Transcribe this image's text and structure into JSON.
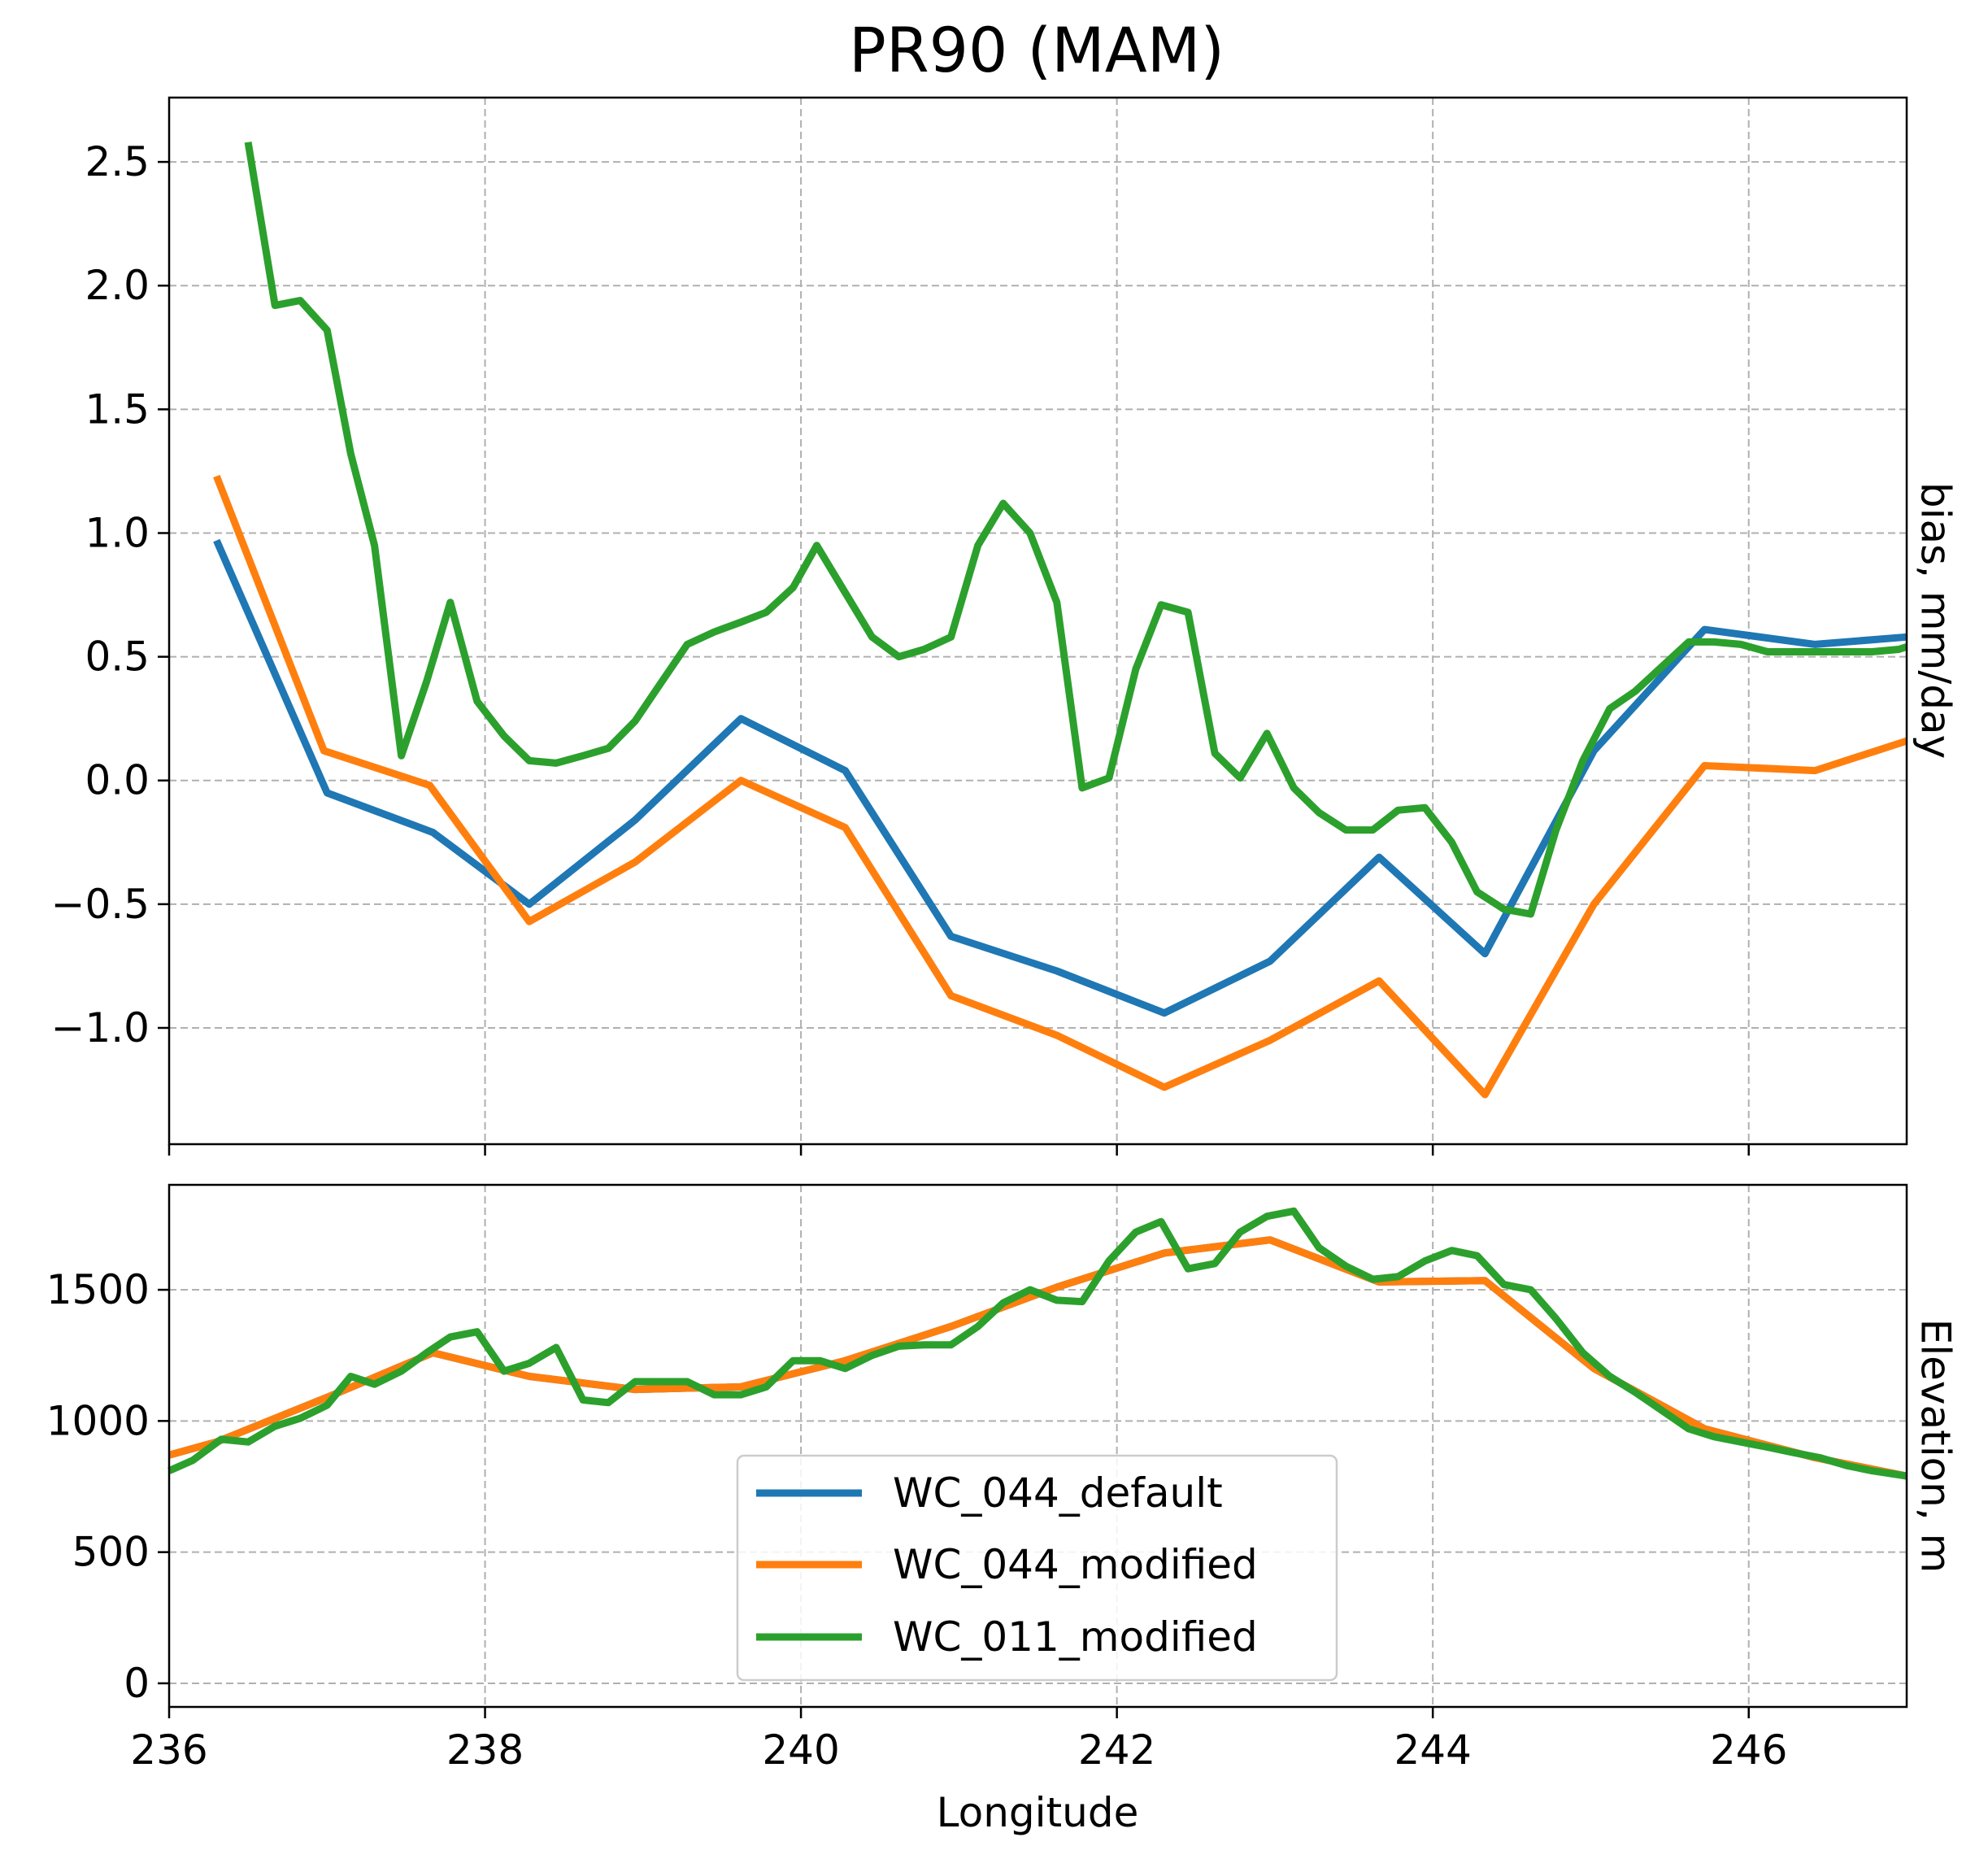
{
  "title": "PR90 (MAM)",
  "colors": {
    "WC_044_default": "#1f77b4",
    "WC_044_modified": "#ff7f0e",
    "WC_011_modified": "#2ca02c",
    "grid": "#b0b0b0"
  },
  "chart_data": [
    {
      "type": "line",
      "title": "PR90 (MAM)",
      "xlabel": "",
      "ylabel": "bias, mm/day",
      "ylabel_position": "right",
      "xlim": [
        236,
        247
      ],
      "ylim": [
        -1.47,
        2.76
      ],
      "grid": true,
      "xticks": [
        236,
        238,
        240,
        242,
        244,
        246
      ],
      "x_tick_labels_shown": false,
      "yticks": [
        -1.0,
        -0.5,
        0.0,
        0.5,
        1.0,
        1.5,
        2.0,
        2.5
      ],
      "ytick_labels": [
        "−1.0",
        "−0.5",
        "0.0",
        "0.5",
        "1.0",
        "1.5",
        "2.0",
        "2.5"
      ],
      "series": [
        {
          "name": "WC_044_default",
          "color": "#1f77b4",
          "x": [
            236.3,
            237.0,
            237.67,
            238.28,
            238.95,
            239.62,
            240.28,
            240.95,
            241.62,
            242.3,
            242.97,
            243.66,
            244.33,
            245.02,
            245.72,
            246.42,
            247.0
          ],
          "y": [
            0.97,
            -0.05,
            -0.21,
            -0.5,
            -0.16,
            0.25,
            0.04,
            -0.63,
            -0.77,
            -0.94,
            -0.73,
            -0.31,
            -0.7,
            0.12,
            0.61,
            0.55,
            0.58
          ]
        },
        {
          "name": "WC_044_modified",
          "color": "#ff7f0e",
          "x": [
            236.3,
            236.98,
            237.65,
            238.28,
            238.95,
            239.62,
            240.28,
            240.95,
            241.62,
            242.3,
            242.97,
            243.66,
            244.33,
            245.02,
            245.72,
            246.42,
            247.0
          ],
          "y": [
            1.23,
            0.12,
            -0.02,
            -0.57,
            -0.33,
            0.0,
            -0.19,
            -0.87,
            -1.03,
            -1.24,
            -1.05,
            -0.81,
            -1.27,
            -0.5,
            0.06,
            0.04,
            0.16
          ]
        },
        {
          "name": "WC_011_modified",
          "color": "#2ca02c",
          "x": [
            236.5,
            236.67,
            236.83,
            237.0,
            237.15,
            237.3,
            237.47,
            237.63,
            237.78,
            237.95,
            238.12,
            238.28,
            238.45,
            238.62,
            238.78,
            238.95,
            239.12,
            239.28,
            239.45,
            239.62,
            239.78,
            239.95,
            240.1,
            240.27,
            240.45,
            240.62,
            240.78,
            240.95,
            241.12,
            241.28,
            241.45,
            241.62,
            241.78,
            241.95,
            242.12,
            242.28,
            242.45,
            242.62,
            242.78,
            242.95,
            243.12,
            243.28,
            243.45,
            243.62,
            243.78,
            243.95,
            244.12,
            244.28,
            244.45,
            244.62,
            244.78,
            244.95,
            245.12,
            245.28,
            245.45,
            245.62,
            245.78,
            245.95,
            246.12,
            246.28,
            246.45,
            246.62,
            246.78,
            246.95,
            247.0
          ],
          "y": [
            2.58,
            1.92,
            1.94,
            1.82,
            1.32,
            0.95,
            0.1,
            0.4,
            0.72,
            0.32,
            0.18,
            0.08,
            0.07,
            0.1,
            0.13,
            0.24,
            0.4,
            0.55,
            0.6,
            0.64,
            0.68,
            0.78,
            0.95,
            0.77,
            0.58,
            0.5,
            0.53,
            0.58,
            0.95,
            1.12,
            1.0,
            0.72,
            -0.03,
            0.01,
            0.45,
            0.71,
            0.68,
            0.11,
            0.01,
            0.19,
            -0.03,
            -0.13,
            -0.2,
            -0.2,
            -0.12,
            -0.11,
            -0.25,
            -0.45,
            -0.52,
            -0.54,
            -0.2,
            0.08,
            0.29,
            0.36,
            0.46,
            0.56,
            0.56,
            0.55,
            0.52,
            0.52,
            0.52,
            0.52,
            0.52,
            0.53,
            0.54
          ]
        }
      ]
    },
    {
      "type": "line",
      "xlabel": "Longitude",
      "ylabel": "Elevation, m",
      "ylabel_position": "right",
      "xlim": [
        236,
        247
      ],
      "ylim": [
        -90,
        1900
      ],
      "grid": true,
      "xticks": [
        236,
        238,
        240,
        242,
        244,
        246
      ],
      "xtick_labels": [
        "236",
        "238",
        "240",
        "242",
        "244",
        "246"
      ],
      "yticks": [
        0,
        500,
        1000,
        1500
      ],
      "ytick_labels": [
        "0",
        "500",
        "1000",
        "1500"
      ],
      "legend": {
        "placement": "lower center",
        "entries": [
          "WC_044_default",
          "WC_044_modified",
          "WC_011_modified"
        ]
      },
      "series": [
        {
          "name": "WC_044_default",
          "color": "#1f77b4",
          "x": [
            236.0,
            236.3,
            237.0,
            237.67,
            238.28,
            238.95,
            239.62,
            240.28,
            240.95,
            241.62,
            242.3,
            242.97,
            243.66,
            244.33,
            245.02,
            245.72,
            246.42,
            247.0
          ],
          "y": [
            870,
            920,
            1090,
            1260,
            1170,
            1120,
            1130,
            1230,
            1360,
            1510,
            1640,
            1690,
            1530,
            1535,
            1200,
            970,
            860,
            790
          ]
        },
        {
          "name": "WC_044_modified",
          "color": "#ff7f0e",
          "x": [
            236.0,
            236.3,
            237.0,
            237.67,
            238.28,
            238.95,
            239.62,
            240.28,
            240.95,
            241.62,
            242.3,
            242.97,
            243.66,
            244.33,
            245.02,
            245.72,
            246.42,
            247.0
          ],
          "y": [
            870,
            920,
            1090,
            1260,
            1170,
            1120,
            1130,
            1230,
            1360,
            1510,
            1640,
            1690,
            1530,
            1535,
            1200,
            970,
            860,
            790
          ]
        },
        {
          "name": "WC_011_modified",
          "color": "#2ca02c",
          "x": [
            236.0,
            236.15,
            236.33,
            236.5,
            236.67,
            236.83,
            237.0,
            237.15,
            237.3,
            237.47,
            237.63,
            237.78,
            237.95,
            238.12,
            238.28,
            238.45,
            238.62,
            238.78,
            238.95,
            239.12,
            239.28,
            239.45,
            239.62,
            239.78,
            239.95,
            240.12,
            240.28,
            240.45,
            240.62,
            240.78,
            240.95,
            241.12,
            241.28,
            241.45,
            241.62,
            241.78,
            241.95,
            242.12,
            242.28,
            242.45,
            242.62,
            242.78,
            242.95,
            243.12,
            243.28,
            243.45,
            243.62,
            243.78,
            243.95,
            244.12,
            244.28,
            244.45,
            244.62,
            244.78,
            244.95,
            245.12,
            245.28,
            245.45,
            245.62,
            245.78,
            245.95,
            246.12,
            246.28,
            246.45,
            246.62,
            246.78,
            247.0
          ],
          "y": [
            810,
            850,
            930,
            920,
            980,
            1010,
            1060,
            1170,
            1140,
            1190,
            1260,
            1320,
            1340,
            1190,
            1220,
            1280,
            1080,
            1070,
            1150,
            1150,
            1150,
            1100,
            1100,
            1130,
            1230,
            1230,
            1200,
            1250,
            1285,
            1290,
            1290,
            1360,
            1450,
            1500,
            1460,
            1455,
            1610,
            1720,
            1760,
            1580,
            1600,
            1720,
            1780,
            1800,
            1660,
            1590,
            1540,
            1550,
            1610,
            1650,
            1630,
            1520,
            1500,
            1390,
            1260,
            1170,
            1110,
            1040,
            970,
            940,
            920,
            900,
            880,
            860,
            830,
            810,
            790
          ]
        }
      ]
    }
  ]
}
